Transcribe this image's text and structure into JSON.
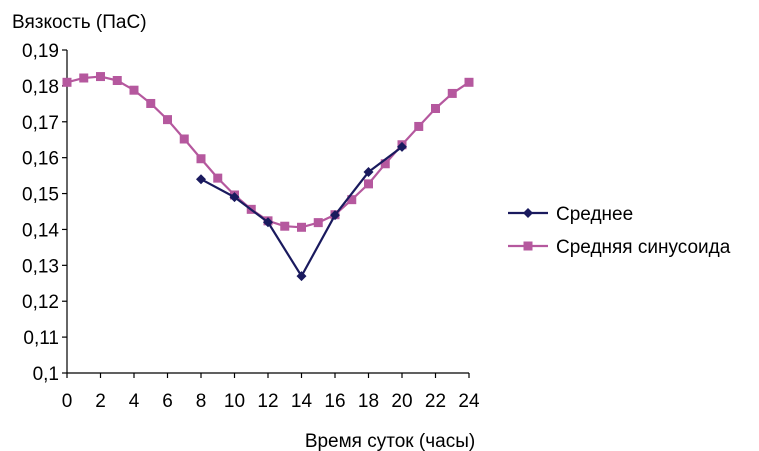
{
  "chart_data": {
    "type": "line",
    "title": "",
    "ylabel": "Вязкость (ПаС)",
    "xlabel": "Время суток (часы)",
    "xlim": [
      0,
      24
    ],
    "ylim": [
      0.1,
      0.19
    ],
    "x_ticks": [
      "0",
      "2",
      "4",
      "6",
      "8",
      "10",
      "12",
      "14",
      "16",
      "18",
      "20",
      "22",
      "24"
    ],
    "y_ticks": [
      "0,1",
      "0,11",
      "0,12",
      "0,13",
      "0,14",
      "0,15",
      "0,16",
      "0,17",
      "0,18",
      "0,19"
    ],
    "grid": false,
    "legend": "right",
    "series": [
      {
        "name": "Среднее",
        "color": "#1a1a5e",
        "marker": "diamond",
        "x": [
          8,
          10,
          12,
          14,
          16,
          18,
          20
        ],
        "y": [
          0.154,
          0.149,
          0.142,
          0.127,
          0.144,
          0.156,
          0.163
        ]
      },
      {
        "name": "Средняя синусоида",
        "color": "#b5589e",
        "marker": "square",
        "x": [
          0,
          1,
          2,
          3,
          4,
          5,
          6,
          7,
          8,
          9,
          10,
          11,
          12,
          13,
          14,
          15,
          16,
          17,
          18,
          19,
          20,
          21,
          22,
          23,
          24
        ],
        "y": [
          0.181,
          0.1822,
          0.1826,
          0.1815,
          0.1788,
          0.1751,
          0.1706,
          0.1652,
          0.1597,
          0.1543,
          0.1496,
          0.1456,
          0.1424,
          0.1409,
          0.1406,
          0.1419,
          0.1441,
          0.1483,
          0.1527,
          0.1583,
          0.1636,
          0.1687,
          0.1737,
          0.1779,
          0.181
        ]
      }
    ]
  }
}
